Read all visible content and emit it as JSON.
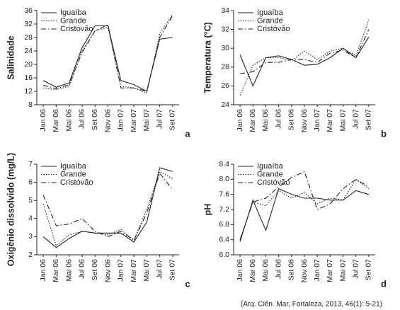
{
  "chart_data": [
    {
      "type": "line",
      "ylabel": "Salinidade",
      "label": "a",
      "legend": "upper left",
      "categories": [
        "Jan 06",
        "Mar 06",
        "Mai 06",
        "Jul 06",
        "Set 06",
        "Nov 06",
        "Jan 07",
        "Mar 07",
        "Mai 07",
        "Jul 07",
        "Set 07"
      ],
      "ylim": [
        8,
        36
      ],
      "yticks": [
        8,
        12,
        16,
        20,
        24,
        28,
        32,
        36
      ],
      "series": [
        {
          "name": "Iguaíba",
          "color": "#222222",
          "dash": "solid",
          "values": [
            15.2,
            13.2,
            14.5,
            25,
            31.5,
            31.5,
            15.2,
            14,
            12,
            27.5,
            28
          ]
        },
        {
          "name": "Grande",
          "color": "#222222",
          "dash": "dotted",
          "values": [
            13,
            12.5,
            13.5,
            24,
            30,
            31,
            13.5,
            13,
            11.5,
            29,
            35
          ]
        },
        {
          "name": "Cristóvão",
          "color": "#222222",
          "dash": "dashdot",
          "values": [
            13.8,
            12.8,
            14,
            23.5,
            30,
            31.8,
            13,
            13,
            12,
            28,
            34.5
          ]
        }
      ]
    },
    {
      "type": "line",
      "ylabel": "Temperatura (°C)",
      "label": "b",
      "legend": "upper left",
      "categories": [
        "Jan 06",
        "Mar 06",
        "Mai 06",
        "Jul 06",
        "Set 06",
        "Nov 06",
        "Jan 07",
        "Mar 07",
        "Mai 07",
        "Jul 07",
        "Set 07"
      ],
      "ylim": [
        24,
        34
      ],
      "yticks": [
        24,
        26,
        28,
        30,
        32,
        34
      ],
      "series": [
        {
          "name": "Iguaíba",
          "color": "#222222",
          "dash": "solid",
          "values": [
            29.3,
            26,
            29,
            29.2,
            28.8,
            28.2,
            28.3,
            29,
            30,
            29,
            31.2
          ]
        },
        {
          "name": "Grande",
          "color": "#222222",
          "dash": "dotted",
          "values": [
            25,
            28.2,
            29,
            29,
            28.7,
            29.7,
            28.8,
            29.7,
            30,
            29.2,
            33
          ]
        },
        {
          "name": "Cristóvão",
          "color": "#222222",
          "dash": "dashdot",
          "values": [
            27.3,
            27.5,
            28.5,
            28.5,
            28.8,
            28.8,
            28.5,
            29.5,
            29.8,
            29,
            32
          ]
        }
      ]
    },
    {
      "type": "line",
      "ylabel": "Oxigênio dissolvido (mg/L)",
      "label": "c",
      "legend": "upper left",
      "categories": [
        "Jan 06",
        "Mar 06",
        "Mai 06",
        "Jul 06",
        "Set 06",
        "Nov 06",
        "Jan 07",
        "Mar 07",
        "Mai 07",
        "Jul 07",
        "Set 07"
      ],
      "ylim": [
        2,
        7
      ],
      "yticks": [
        2,
        3,
        4,
        5,
        6,
        7
      ],
      "series": [
        {
          "name": "Iguaíba",
          "color": "#222222",
          "dash": "solid",
          "values": [
            3.0,
            2.4,
            2.9,
            3.3,
            3.2,
            3.2,
            3.2,
            2.7,
            3.8,
            6.8,
            6.6
          ]
        },
        {
          "name": "Grande",
          "color": "#222222",
          "dash": "dotted",
          "values": [
            4.8,
            2.5,
            3.1,
            3.3,
            3.2,
            3.1,
            3.4,
            2.8,
            4.5,
            6.6,
            6.2
          ]
        },
        {
          "name": "Cristóvão",
          "color": "#222222",
          "dash": "dashdot",
          "values": [
            5.3,
            3.6,
            3.7,
            4.0,
            3.3,
            3.0,
            3.3,
            2.8,
            4.3,
            6.5,
            5.6
          ]
        }
      ]
    },
    {
      "type": "line",
      "ylabel": "pH",
      "label": "d",
      "legend": "upper left",
      "categories": [
        "Jan 06",
        "Mar 06",
        "Mai 06",
        "Jul 06",
        "Set 06",
        "Nov 06",
        "Jan 07",
        "Mar 07",
        "Mai 07",
        "Jul 07",
        "Set 07"
      ],
      "ylim": [
        6,
        8.4
      ],
      "yticks": [
        {
          "value": 6,
          "label": "6.0"
        },
        6.4,
        6.8,
        7.2,
        7.6,
        {
          "value": 8,
          "label": "8.0"
        },
        8.4
      ],
      "series": [
        {
          "name": "Iguaíba",
          "color": "#222222",
          "dash": "solid",
          "values": [
            6.35,
            7.45,
            6.65,
            7.75,
            7.6,
            7.5,
            7.5,
            7.45,
            7.45,
            7.7,
            7.6
          ]
        },
        {
          "name": "Grande",
          "color": "#222222",
          "dash": "dotted",
          "values": [
            6.4,
            7.4,
            7.3,
            7.7,
            7.5,
            7.65,
            7.35,
            7.5,
            7.45,
            8.0,
            7.75
          ]
        },
        {
          "name": "Cristóvão",
          "color": "#222222",
          "dash": "dashdot",
          "values": [
            6.4,
            7.4,
            7.5,
            7.8,
            8.05,
            8.2,
            7.2,
            7.35,
            7.75,
            8.0,
            7.8
          ]
        }
      ]
    }
  ],
  "source": "(Arq. Ciên. Mar, Fortaleza, 2013, 46(1): 5-21)"
}
